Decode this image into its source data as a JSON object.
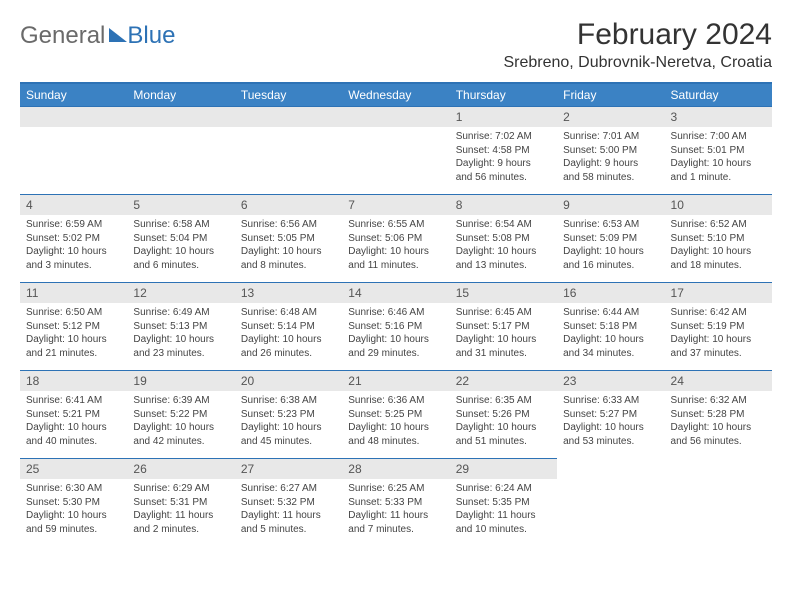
{
  "logo": {
    "general": "General",
    "blue": "Blue"
  },
  "title": "February 2024",
  "location": "Srebreno, Dubrovnik-Neretva, Croatia",
  "header_color": "#3b82c4",
  "border_color": "#2d72b5",
  "daybar_color": "#e8e8e8",
  "columns": [
    "Sunday",
    "Monday",
    "Tuesday",
    "Wednesday",
    "Thursday",
    "Friday",
    "Saturday"
  ],
  "weeks": [
    [
      null,
      null,
      null,
      null,
      {
        "n": "1",
        "sr": "Sunrise: 7:02 AM",
        "ss": "Sunset: 4:58 PM",
        "dl1": "Daylight: 9 hours",
        "dl2": "and 56 minutes."
      },
      {
        "n": "2",
        "sr": "Sunrise: 7:01 AM",
        "ss": "Sunset: 5:00 PM",
        "dl1": "Daylight: 9 hours",
        "dl2": "and 58 minutes."
      },
      {
        "n": "3",
        "sr": "Sunrise: 7:00 AM",
        "ss": "Sunset: 5:01 PM",
        "dl1": "Daylight: 10 hours",
        "dl2": "and 1 minute."
      }
    ],
    [
      {
        "n": "4",
        "sr": "Sunrise: 6:59 AM",
        "ss": "Sunset: 5:02 PM",
        "dl1": "Daylight: 10 hours",
        "dl2": "and 3 minutes."
      },
      {
        "n": "5",
        "sr": "Sunrise: 6:58 AM",
        "ss": "Sunset: 5:04 PM",
        "dl1": "Daylight: 10 hours",
        "dl2": "and 6 minutes."
      },
      {
        "n": "6",
        "sr": "Sunrise: 6:56 AM",
        "ss": "Sunset: 5:05 PM",
        "dl1": "Daylight: 10 hours",
        "dl2": "and 8 minutes."
      },
      {
        "n": "7",
        "sr": "Sunrise: 6:55 AM",
        "ss": "Sunset: 5:06 PM",
        "dl1": "Daylight: 10 hours",
        "dl2": "and 11 minutes."
      },
      {
        "n": "8",
        "sr": "Sunrise: 6:54 AM",
        "ss": "Sunset: 5:08 PM",
        "dl1": "Daylight: 10 hours",
        "dl2": "and 13 minutes."
      },
      {
        "n": "9",
        "sr": "Sunrise: 6:53 AM",
        "ss": "Sunset: 5:09 PM",
        "dl1": "Daylight: 10 hours",
        "dl2": "and 16 minutes."
      },
      {
        "n": "10",
        "sr": "Sunrise: 6:52 AM",
        "ss": "Sunset: 5:10 PM",
        "dl1": "Daylight: 10 hours",
        "dl2": "and 18 minutes."
      }
    ],
    [
      {
        "n": "11",
        "sr": "Sunrise: 6:50 AM",
        "ss": "Sunset: 5:12 PM",
        "dl1": "Daylight: 10 hours",
        "dl2": "and 21 minutes."
      },
      {
        "n": "12",
        "sr": "Sunrise: 6:49 AM",
        "ss": "Sunset: 5:13 PM",
        "dl1": "Daylight: 10 hours",
        "dl2": "and 23 minutes."
      },
      {
        "n": "13",
        "sr": "Sunrise: 6:48 AM",
        "ss": "Sunset: 5:14 PM",
        "dl1": "Daylight: 10 hours",
        "dl2": "and 26 minutes."
      },
      {
        "n": "14",
        "sr": "Sunrise: 6:46 AM",
        "ss": "Sunset: 5:16 PM",
        "dl1": "Daylight: 10 hours",
        "dl2": "and 29 minutes."
      },
      {
        "n": "15",
        "sr": "Sunrise: 6:45 AM",
        "ss": "Sunset: 5:17 PM",
        "dl1": "Daylight: 10 hours",
        "dl2": "and 31 minutes."
      },
      {
        "n": "16",
        "sr": "Sunrise: 6:44 AM",
        "ss": "Sunset: 5:18 PM",
        "dl1": "Daylight: 10 hours",
        "dl2": "and 34 minutes."
      },
      {
        "n": "17",
        "sr": "Sunrise: 6:42 AM",
        "ss": "Sunset: 5:19 PM",
        "dl1": "Daylight: 10 hours",
        "dl2": "and 37 minutes."
      }
    ],
    [
      {
        "n": "18",
        "sr": "Sunrise: 6:41 AM",
        "ss": "Sunset: 5:21 PM",
        "dl1": "Daylight: 10 hours",
        "dl2": "and 40 minutes."
      },
      {
        "n": "19",
        "sr": "Sunrise: 6:39 AM",
        "ss": "Sunset: 5:22 PM",
        "dl1": "Daylight: 10 hours",
        "dl2": "and 42 minutes."
      },
      {
        "n": "20",
        "sr": "Sunrise: 6:38 AM",
        "ss": "Sunset: 5:23 PM",
        "dl1": "Daylight: 10 hours",
        "dl2": "and 45 minutes."
      },
      {
        "n": "21",
        "sr": "Sunrise: 6:36 AM",
        "ss": "Sunset: 5:25 PM",
        "dl1": "Daylight: 10 hours",
        "dl2": "and 48 minutes."
      },
      {
        "n": "22",
        "sr": "Sunrise: 6:35 AM",
        "ss": "Sunset: 5:26 PM",
        "dl1": "Daylight: 10 hours",
        "dl2": "and 51 minutes."
      },
      {
        "n": "23",
        "sr": "Sunrise: 6:33 AM",
        "ss": "Sunset: 5:27 PM",
        "dl1": "Daylight: 10 hours",
        "dl2": "and 53 minutes."
      },
      {
        "n": "24",
        "sr": "Sunrise: 6:32 AM",
        "ss": "Sunset: 5:28 PM",
        "dl1": "Daylight: 10 hours",
        "dl2": "and 56 minutes."
      }
    ],
    [
      {
        "n": "25",
        "sr": "Sunrise: 6:30 AM",
        "ss": "Sunset: 5:30 PM",
        "dl1": "Daylight: 10 hours",
        "dl2": "and 59 minutes."
      },
      {
        "n": "26",
        "sr": "Sunrise: 6:29 AM",
        "ss": "Sunset: 5:31 PM",
        "dl1": "Daylight: 11 hours",
        "dl2": "and 2 minutes."
      },
      {
        "n": "27",
        "sr": "Sunrise: 6:27 AM",
        "ss": "Sunset: 5:32 PM",
        "dl1": "Daylight: 11 hours",
        "dl2": "and 5 minutes."
      },
      {
        "n": "28",
        "sr": "Sunrise: 6:25 AM",
        "ss": "Sunset: 5:33 PM",
        "dl1": "Daylight: 11 hours",
        "dl2": "and 7 minutes."
      },
      {
        "n": "29",
        "sr": "Sunrise: 6:24 AM",
        "ss": "Sunset: 5:35 PM",
        "dl1": "Daylight: 11 hours",
        "dl2": "and 10 minutes."
      },
      null,
      null
    ]
  ]
}
